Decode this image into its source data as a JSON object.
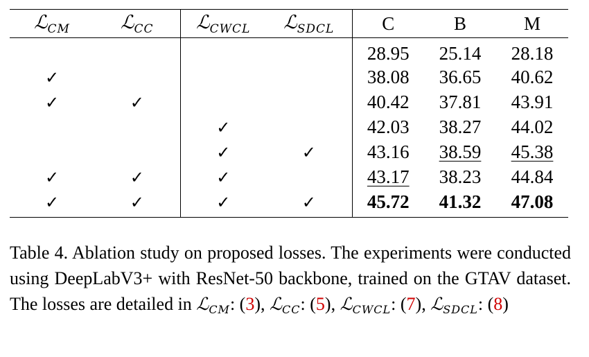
{
  "table": {
    "headers": {
      "loss_cm": {
        "symbol": "ℒ",
        "sub": "CM"
      },
      "loss_cc": {
        "symbol": "ℒ",
        "sub": "CC"
      },
      "loss_cwcl": {
        "symbol": "ℒ",
        "sub": "CWCL"
      },
      "loss_sdcl": {
        "symbol": "ℒ",
        "sub": "SDCL"
      },
      "dataset_c": "C",
      "dataset_b": "B",
      "dataset_m": "M"
    },
    "check_mark": "✓",
    "rows": [
      {
        "cm": false,
        "cc": false,
        "cwcl": false,
        "sdcl": false,
        "c": "28.95",
        "b": "25.14",
        "m": "28.18"
      },
      {
        "cm": true,
        "cc": false,
        "cwcl": false,
        "sdcl": false,
        "c": "38.08",
        "b": "36.65",
        "m": "40.62"
      },
      {
        "cm": true,
        "cc": true,
        "cwcl": false,
        "sdcl": false,
        "c": "40.42",
        "b": "37.81",
        "m": "43.91"
      },
      {
        "cm": false,
        "cc": false,
        "cwcl": true,
        "sdcl": false,
        "c": "42.03",
        "b": "38.27",
        "m": "44.02"
      },
      {
        "cm": false,
        "cc": false,
        "cwcl": true,
        "sdcl": true,
        "c": "43.16",
        "b": "38.59",
        "m": "45.38",
        "underline": [
          "b",
          "m"
        ]
      },
      {
        "cm": true,
        "cc": true,
        "cwcl": true,
        "sdcl": false,
        "c": "43.17",
        "b": "38.23",
        "m": "44.84",
        "underline": [
          "c"
        ]
      },
      {
        "cm": true,
        "cc": true,
        "cwcl": true,
        "sdcl": true,
        "c": "45.72",
        "b": "41.32",
        "m": "47.08",
        "bold": true
      }
    ]
  },
  "caption": {
    "line1": "Table 4. Ablation study on proposed losses. The experiments were",
    "line2": "conducted using DeepLabV3+ with ResNet-50 backbone, trained",
    "line3_text": "on the GTAV dataset. The losses are detailed in ",
    "refs": {
      "cm": {
        "symbol": "ℒ",
        "sub": "CM",
        "colon": ": (",
        "num": "3",
        "close": "), "
      },
      "cc": {
        "symbol": "ℒ",
        "sub": "CC",
        "colon": ":",
        "num": "5",
        "close": "), "
      },
      "cwcl": {
        "symbol": "ℒ",
        "sub": "CWCL",
        "colon": ": (",
        "num": "7",
        "close": "), "
      },
      "sdcl": {
        "symbol": "ℒ",
        "sub": "SDCL",
        "colon": ": (",
        "num": "8",
        "close": ")"
      }
    },
    "ref_color": "#d00000"
  }
}
